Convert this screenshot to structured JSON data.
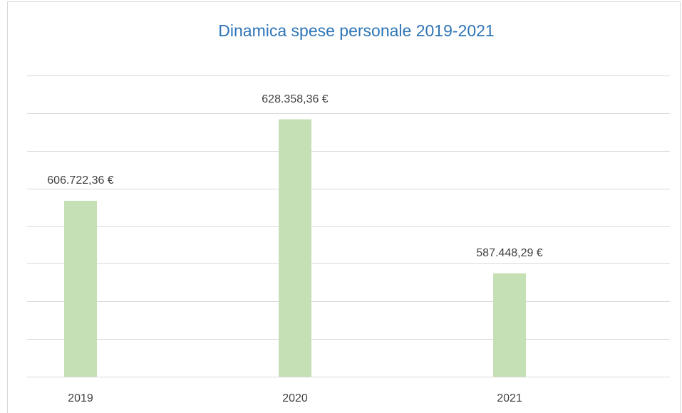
{
  "chart_data": {
    "type": "bar",
    "title": "Dinamica spese personale 2019-2021",
    "categories": [
      "2019",
      "2020",
      "2021"
    ],
    "values": [
      606722.36,
      628358.36,
      587448.29
    ],
    "value_labels": [
      "606.722,36 €",
      "628.358,36 €",
      "587.448,29 €"
    ],
    "color": "#c5e0b4",
    "ylim": [
      560000,
      640000
    ],
    "yticks": [
      560000,
      570000,
      580000,
      590000,
      600000,
      610000,
      620000,
      630000,
      640000
    ],
    "grid": true
  }
}
